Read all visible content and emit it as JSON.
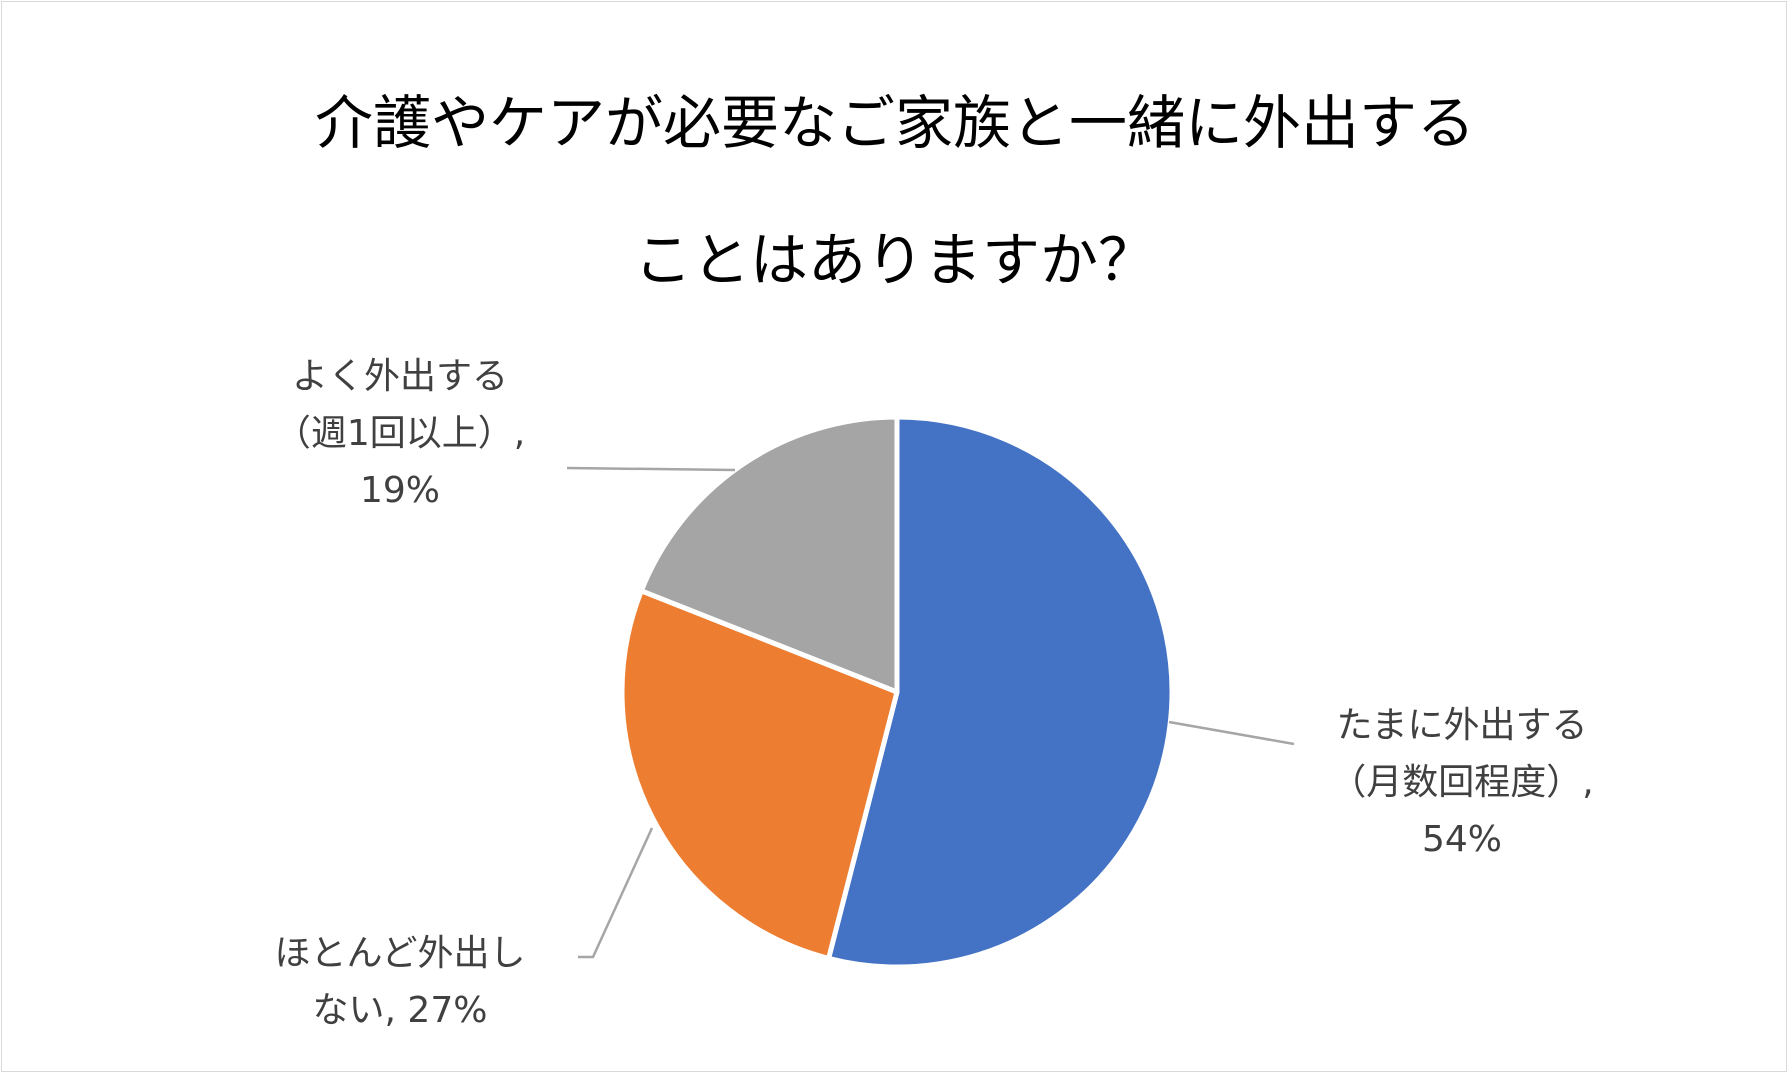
{
  "chart_data": {
    "type": "pie",
    "title_lines": [
      "介護やケアが必要なご家族と一緒に外出する",
      "ことはありますか？"
    ],
    "slices": [
      {
        "name": "たまに外出する（月数回程度）",
        "label_lines": [
          "たまに外出する",
          "（月数回程度）,",
          "54%"
        ],
        "value": 54,
        "color": "#4472c4"
      },
      {
        "name": "ほとんど外出しない",
        "label_lines": [
          "ほとんど外出し",
          "ない, 27%"
        ],
        "value": 27,
        "color": "#ed7d31"
      },
      {
        "name": "よく外出する（週1回以上）",
        "label_lines": [
          "よく外出する",
          "（週1回以上）,",
          "19%"
        ],
        "value": 19,
        "color": "#a5a5a5"
      }
    ],
    "start_angle_deg": 0,
    "direction": "clockwise",
    "legend": "none",
    "leader_line_color": "#a6a6a6"
  }
}
